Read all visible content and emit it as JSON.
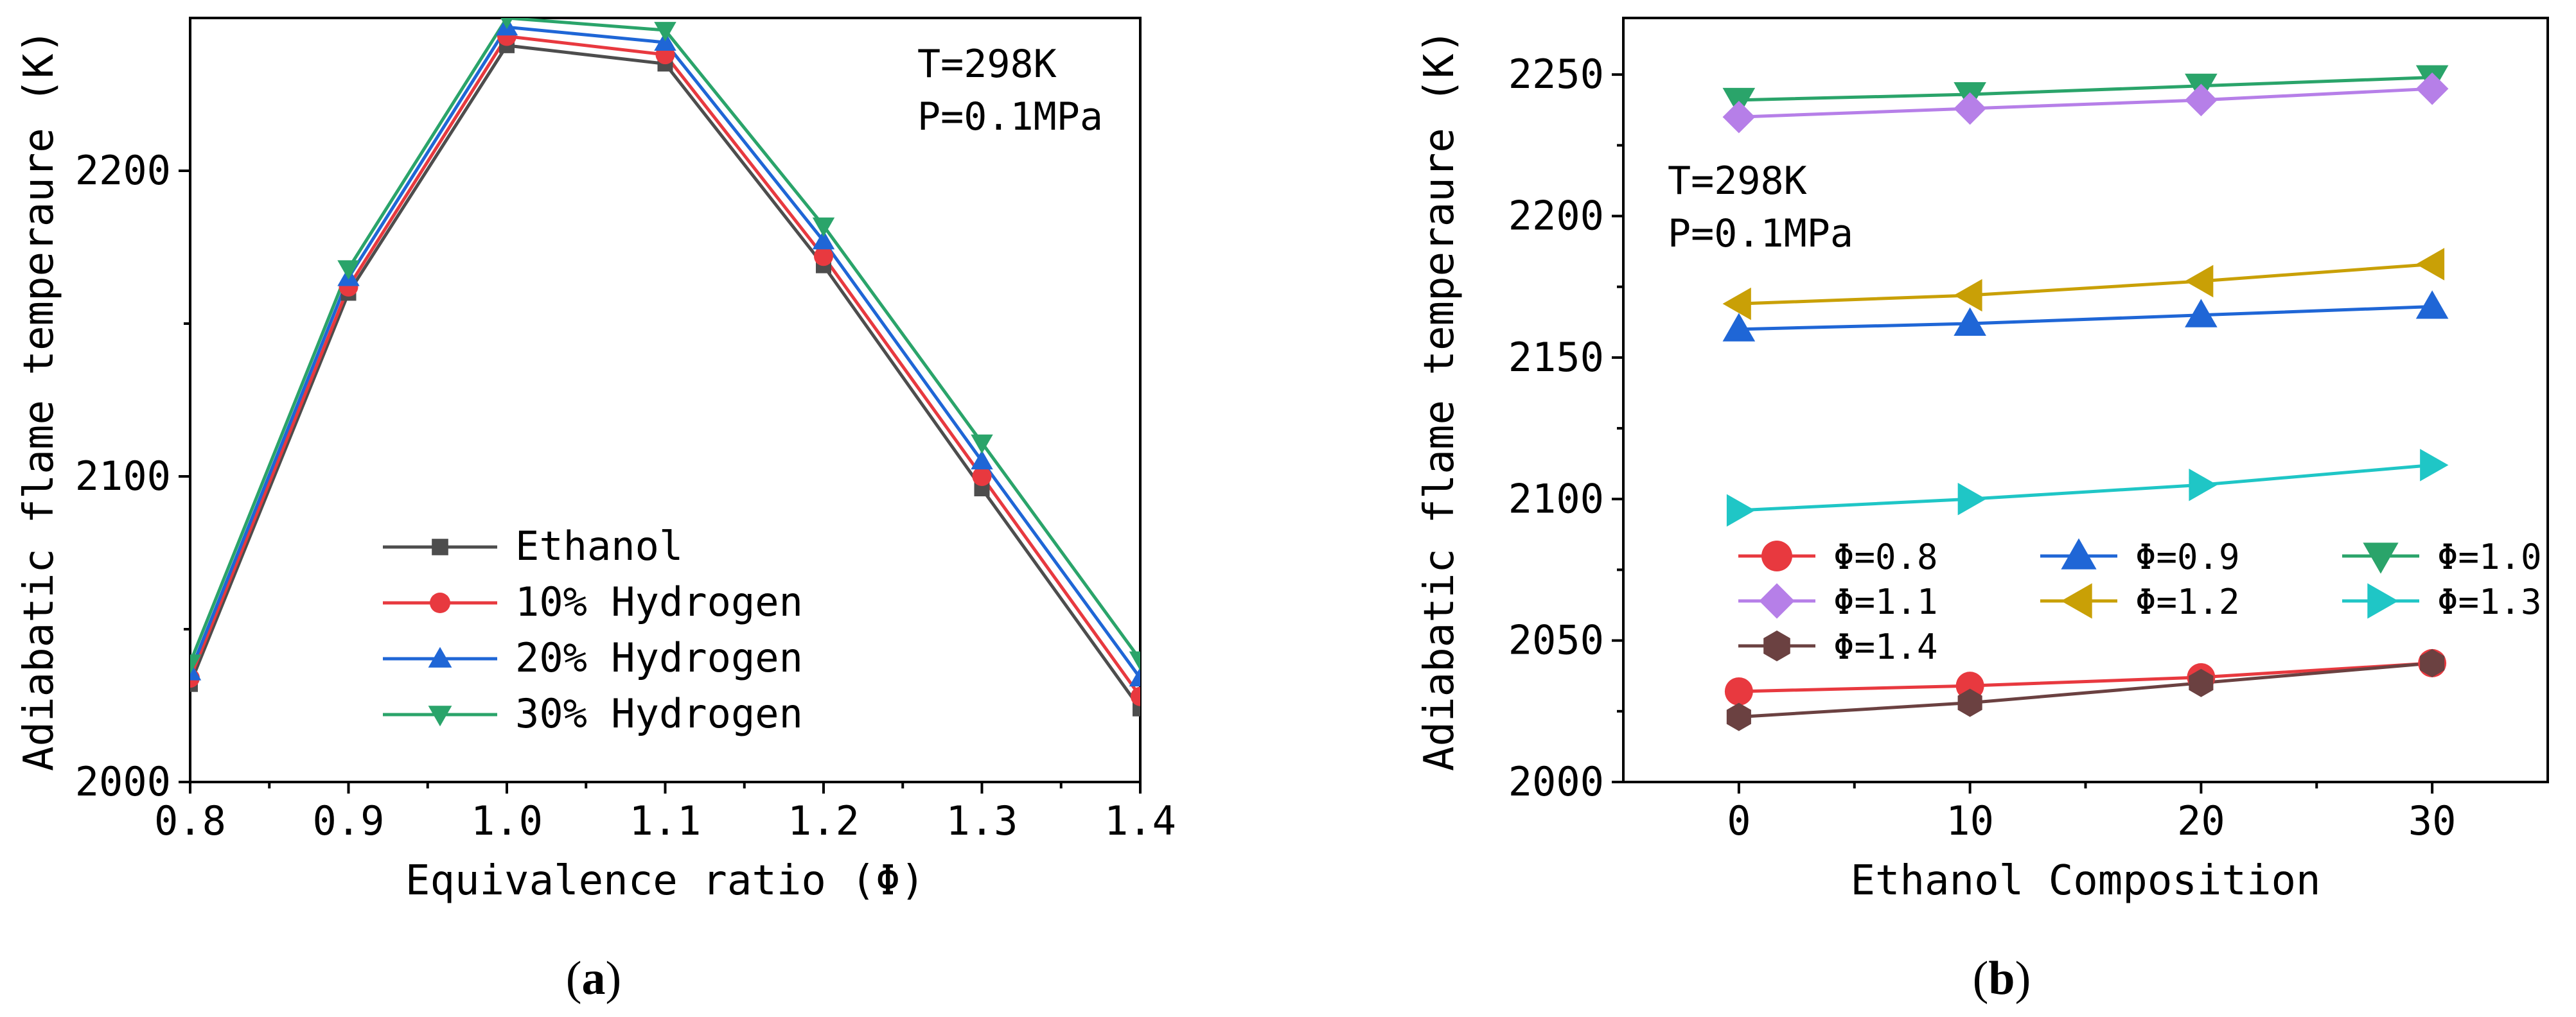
{
  "chart_data": [
    {
      "type": "line",
      "panel": "(a)",
      "panel_letter": "a",
      "xlabel": "Equivalence ratio (Φ)",
      "ylabel": "Adiabatic flame temperaure (K)",
      "x": [
        0.8,
        0.9,
        1.0,
        1.1,
        1.2,
        1.3,
        1.4
      ],
      "x_tick_labels": [
        "0.8",
        "0.9",
        "1.0",
        "1.1",
        "1.2",
        "1.3",
        "1.4"
      ],
      "xlim": [
        0.8,
        1.4
      ],
      "ylim": [
        2000,
        2250
      ],
      "y_ticks": [
        2000,
        2100,
        2200
      ],
      "y_tick_labels": [
        "2000",
        "2100",
        "2200"
      ],
      "annotation": [
        "T=298K",
        "P=0.1MPa"
      ],
      "legend_position": "lower-center",
      "series": [
        {
          "name": "Ethanol",
          "color": "#4d4d4d",
          "marker": "square",
          "values": [
            2032,
            2160,
            2241,
            2235,
            2169,
            2096,
            2024
          ]
        },
        {
          "name": "10% Hydrogen",
          "color": "#e8393f",
          "marker": "circle",
          "values": [
            2034,
            2162,
            2244,
            2238,
            2172,
            2100,
            2028
          ]
        },
        {
          "name": "20% Hydrogen",
          "color": "#1f66d6",
          "marker": "triangle-up",
          "values": [
            2036,
            2165,
            2247,
            2242,
            2177,
            2105,
            2034
          ]
        },
        {
          "name": "30% Hydrogen",
          "color": "#2aa46a",
          "marker": "triangle-down",
          "values": [
            2039,
            2168,
            2250,
            2246,
            2182,
            2111,
            2040
          ]
        }
      ]
    },
    {
      "type": "line",
      "panel": "(b)",
      "panel_letter": "b",
      "xlabel": "Ethanol Composition",
      "ylabel": "Adiabatic flame temperaure (K)",
      "x": [
        0,
        10,
        20,
        30
      ],
      "x_tick_labels": [
        "0",
        "10",
        "20",
        "30"
      ],
      "xlim": [
        -5,
        35
      ],
      "ylim": [
        2000,
        2270
      ],
      "y_ticks": [
        2000,
        2050,
        2100,
        2150,
        2200,
        2250
      ],
      "y_tick_labels": [
        "2000",
        "2050",
        "2100",
        "2150",
        "2200",
        "2250"
      ],
      "annotation": [
        "T=298K",
        "P=0.1MPa"
      ],
      "legend_position": "lower-center",
      "series": [
        {
          "name": "Φ=0.8",
          "color": "#e8393f",
          "marker": "circle",
          "values": [
            2032,
            2034,
            2037,
            2042
          ]
        },
        {
          "name": "Φ=0.9",
          "color": "#1f66d6",
          "marker": "triangle-up",
          "values": [
            2160,
            2162,
            2165,
            2168
          ]
        },
        {
          "name": "Φ=1.0",
          "color": "#2aa46a",
          "marker": "triangle-down",
          "values": [
            2241,
            2243,
            2246,
            2249
          ]
        },
        {
          "name": "Φ=1.1",
          "color": "#b67fe8",
          "marker": "diamond",
          "values": [
            2235,
            2238,
            2241,
            2245
          ]
        },
        {
          "name": "Φ=1.2",
          "color": "#c9a006",
          "marker": "triangle-left",
          "values": [
            2169,
            2172,
            2177,
            2183
          ]
        },
        {
          "name": "Φ=1.3",
          "color": "#1fc6c6",
          "marker": "triangle-right",
          "values": [
            2096,
            2100,
            2105,
            2112
          ]
        },
        {
          "name": "Φ=1.4",
          "color": "#6b4141",
          "marker": "hexagon",
          "values": [
            2023,
            2028,
            2035,
            2042
          ]
        }
      ]
    }
  ]
}
